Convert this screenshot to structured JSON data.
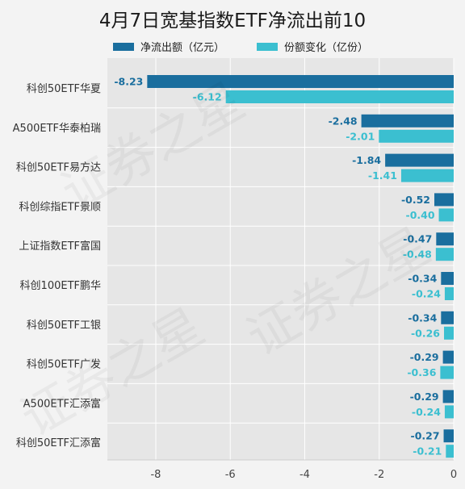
{
  "chart_data": {
    "type": "bar",
    "orientation": "horizontal",
    "title": "4月7日宽基指数ETF净流出前10",
    "categories": [
      "科创50ETF华夏",
      "A500ETF华泰柏瑞",
      "科创50ETF易方达",
      "科创综指ETF景顺",
      "上证指数ETF富国",
      "科创100ETF鹏华",
      "科创50ETF工银",
      "科创50ETF广发",
      "A500ETF汇添富",
      "科创50ETF汇添富"
    ],
    "series": [
      {
        "name": "净流出额（亿元）",
        "color": "#1a6e9e",
        "values": [
          -8.23,
          -2.48,
          -1.84,
          -0.52,
          -0.47,
          -0.34,
          -0.34,
          -0.29,
          -0.29,
          -0.27
        ],
        "labels": [
          "-8.23",
          "-2.48",
          "-1.84",
          "-0.52",
          "-0.47",
          "-0.34",
          "-0.34",
          "-0.29",
          "-0.29",
          "-0.27"
        ]
      },
      {
        "name": "份额变化（亿份）",
        "color": "#3bbfd0",
        "values": [
          -6.12,
          -2.01,
          -1.41,
          -0.4,
          -0.48,
          -0.24,
          -0.26,
          -0.36,
          -0.24,
          -0.21
        ],
        "labels": [
          "-6.12",
          "-2.01",
          "-1.41",
          "-0.40",
          "-0.48",
          "-0.24",
          "-0.26",
          "-0.36",
          "-0.24",
          "-0.21"
        ]
      }
    ],
    "xlim": [
      -9.3,
      0
    ],
    "xticks": [
      -8,
      -6,
      -4,
      -2,
      0
    ],
    "xtick_labels": [
      "-8",
      "-6",
      "-4",
      "-2",
      "0"
    ],
    "grid": true,
    "legend_position": "top"
  },
  "watermark": "证券之星"
}
